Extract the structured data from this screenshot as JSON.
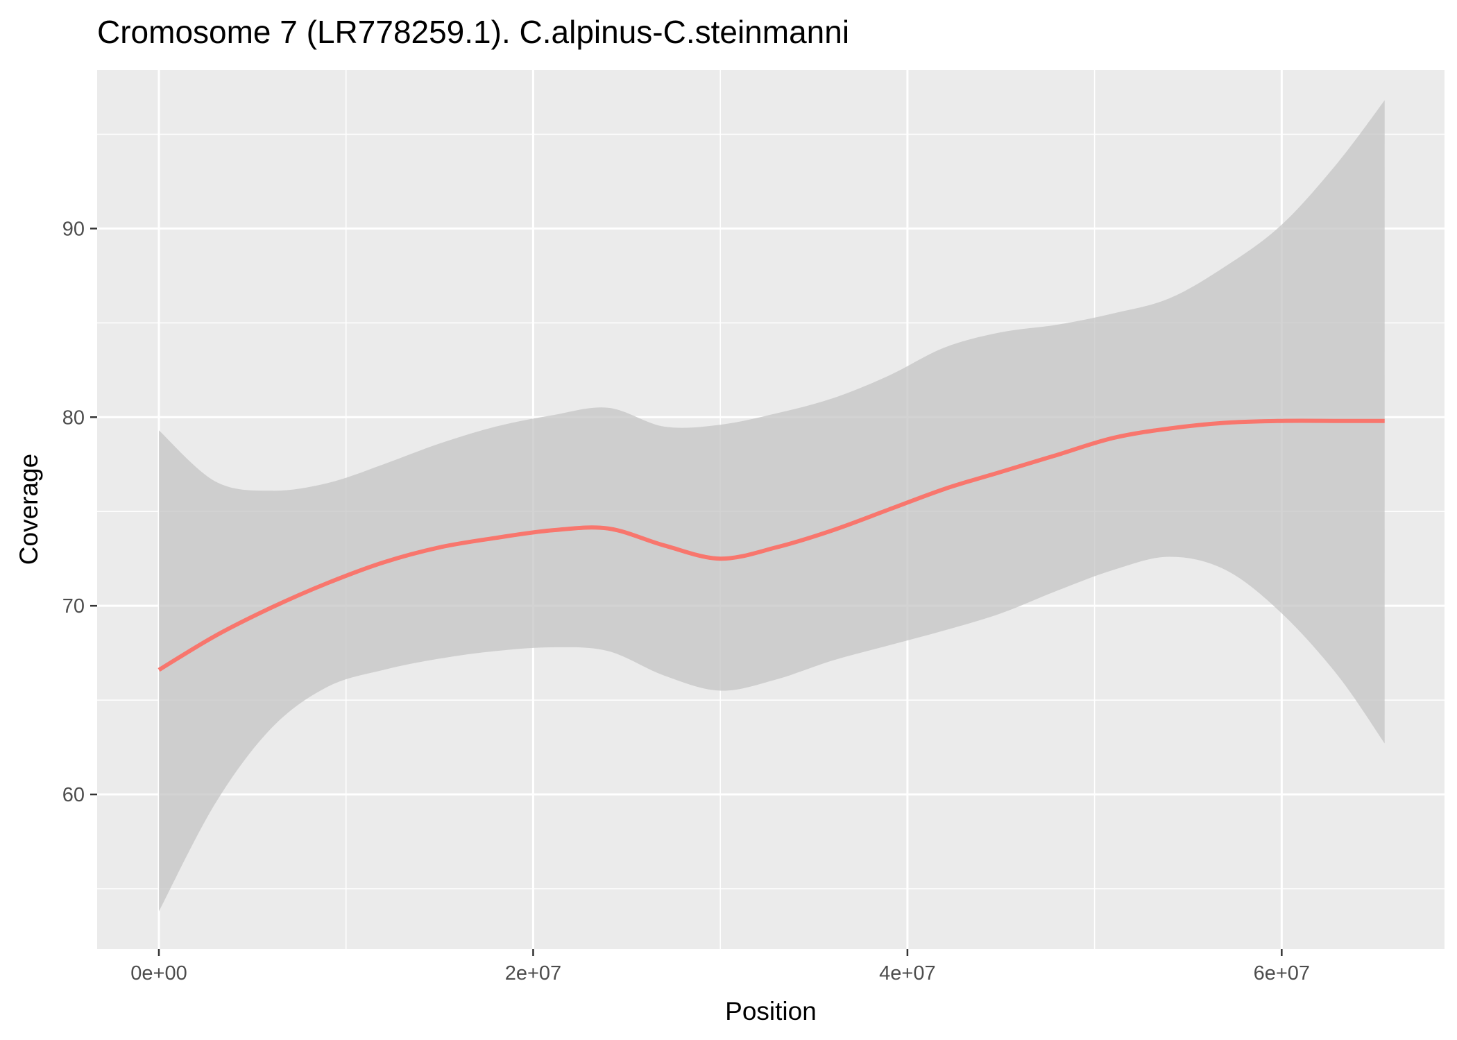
{
  "chart_data": {
    "type": "line",
    "title": "Cromosome 7 (LR778259.1). C.alpinus-C.steinmanni",
    "xlabel": "Position",
    "ylabel": "Coverage",
    "xlim": [
      -3300000,
      68700000
    ],
    "ylim": [
      51.8,
      98.4
    ],
    "x_ticks": [
      0,
      20000000,
      40000000,
      60000000
    ],
    "x_tick_labels": [
      "0e+00",
      "2e+07",
      "4e+07",
      "6e+07"
    ],
    "x_minor_ticks": [
      10000000,
      30000000,
      50000000
    ],
    "y_ticks": [
      60,
      70,
      80,
      90
    ],
    "y_tick_labels": [
      "60",
      "70",
      "80",
      "90"
    ],
    "y_minor_ticks": [
      55,
      65,
      75,
      85,
      95
    ],
    "grid": true,
    "legend": "none",
    "colors": {
      "panel": "#ebebeb",
      "grid": "#ffffff",
      "line": "#f8766d",
      "ribbon": "#c4c4c4"
    },
    "series": [
      {
        "x": [
          0,
          3000000,
          6000000,
          9000000,
          12000000,
          15000000,
          18000000,
          21000000,
          24000000,
          27000000,
          30000000,
          33000000,
          36000000,
          39000000,
          42000000,
          45000000,
          48000000,
          51000000,
          54000000,
          57000000,
          60000000,
          63000000,
          65500000
        ],
        "y": [
          66.6,
          68.4,
          69.9,
          71.2,
          72.3,
          73.1,
          73.6,
          74.0,
          74.1,
          73.2,
          72.5,
          73.1,
          74.0,
          75.1,
          76.2,
          77.1,
          78.0,
          78.9,
          79.4,
          79.7,
          79.8,
          79.8,
          79.8
        ],
        "ymin": [
          53.8,
          59.5,
          63.5,
          65.7,
          66.6,
          67.2,
          67.6,
          67.8,
          67.6,
          66.3,
          65.5,
          66.1,
          67.1,
          67.9,
          68.7,
          69.6,
          70.8,
          71.9,
          72.6,
          71.9,
          69.6,
          66.3,
          62.7
        ],
        "ymax": [
          79.3,
          76.6,
          76.1,
          76.5,
          77.5,
          78.6,
          79.5,
          80.1,
          80.5,
          79.5,
          79.6,
          80.2,
          81.0,
          82.2,
          83.7,
          84.5,
          84.9,
          85.5,
          86.3,
          88.0,
          90.2,
          93.5,
          96.8
        ]
      }
    ]
  }
}
